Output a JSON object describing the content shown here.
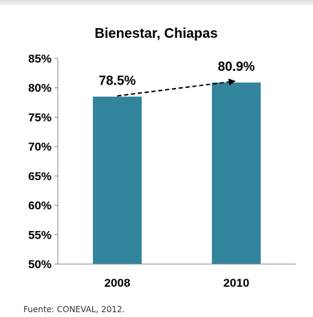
{
  "chart_data": {
    "type": "bar",
    "title": "Bienestar, Chiapas",
    "categories": [
      "2008",
      "2010"
    ],
    "values": [
      78.5,
      80.9
    ],
    "value_labels": [
      "78.5%",
      "80.9%"
    ],
    "ylim": [
      50,
      85
    ],
    "yticks": [
      50,
      55,
      60,
      65,
      70,
      75,
      80,
      85
    ],
    "ytick_labels": [
      "50%",
      "55%",
      "60%",
      "65%",
      "70%",
      "75%",
      "80%",
      "85%"
    ],
    "xlabel": "",
    "ylabel": "",
    "grid": false,
    "legend": "none",
    "bar_color": "#31849b",
    "annotation": "dashed-arrow-2008-to-2010"
  },
  "source": "Fuente: CONEVAL, 2012."
}
